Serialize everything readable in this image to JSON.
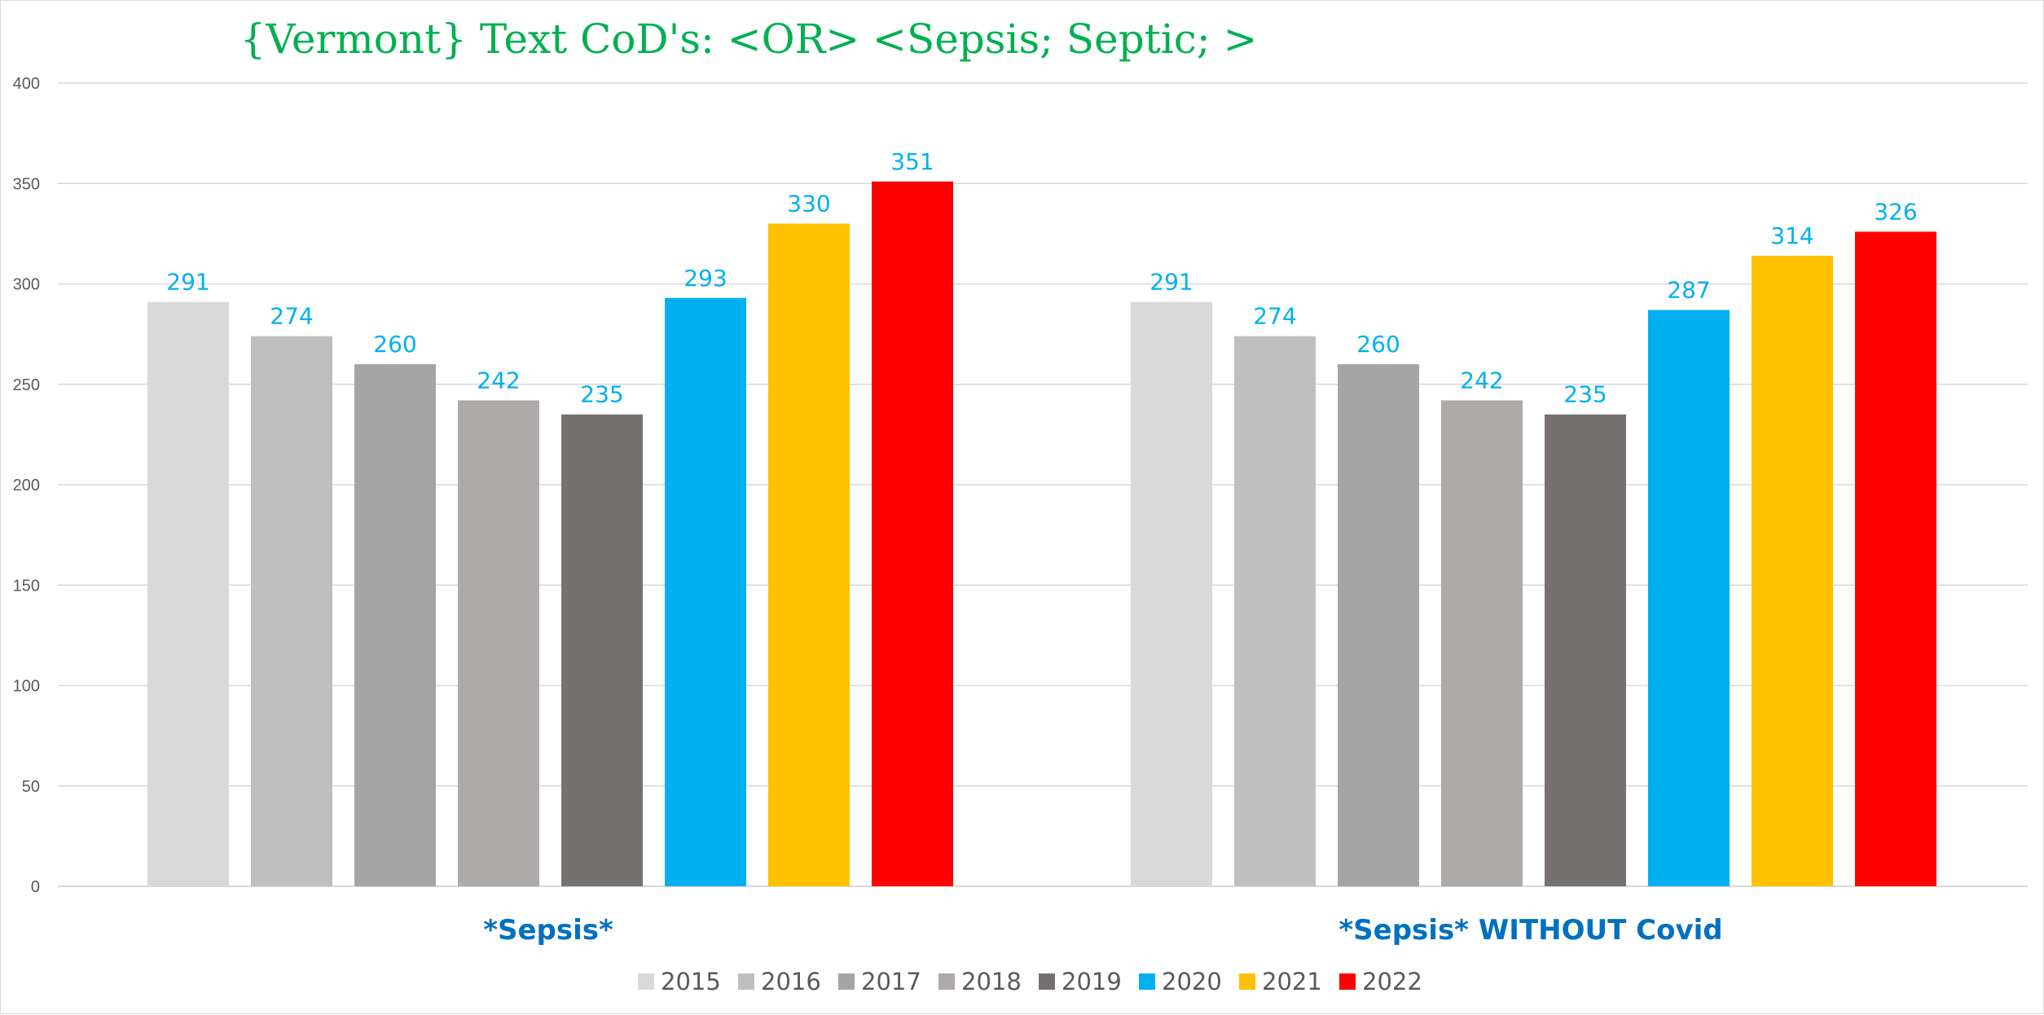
{
  "chart_data": {
    "type": "bar",
    "title": "{Vermont}  Text CoD's: <OR> <Sepsis; Septic; >",
    "categories": [
      "*Sepsis*",
      "*Sepsis* WITHOUT Covid"
    ],
    "series": [
      {
        "name": "2015",
        "color": "#d9d9d9",
        "values": [
          291,
          291
        ]
      },
      {
        "name": "2016",
        "color": "#bfbfbf",
        "values": [
          274,
          274
        ]
      },
      {
        "name": "2017",
        "color": "#a5a5a5",
        "values": [
          260,
          260
        ]
      },
      {
        "name": "2018",
        "color": "#aeaaaa",
        "values": [
          242,
          242
        ]
      },
      {
        "name": "2019",
        "color": "#767171",
        "values": [
          235,
          235
        ]
      },
      {
        "name": "2020",
        "color": "#00b0f0",
        "values": [
          293,
          287
        ]
      },
      {
        "name": "2021",
        "color": "#ffc000",
        "values": [
          330,
          314
        ]
      },
      {
        "name": "2022",
        "color": "#ff0000",
        "values": [
          351,
          326
        ]
      }
    ],
    "ylim": [
      0,
      400
    ],
    "yticks": [
      0,
      50,
      100,
      150,
      200,
      250,
      300,
      350,
      400
    ],
    "xlabel": "",
    "ylabel": "",
    "grid": true,
    "legend": "bottom",
    "colors": {
      "title": "#00b050",
      "data_label": "#00b0f0",
      "category_label": "#0070c0",
      "gridline": "#d9d9d9",
      "axis": "#d9d9d9"
    }
  }
}
